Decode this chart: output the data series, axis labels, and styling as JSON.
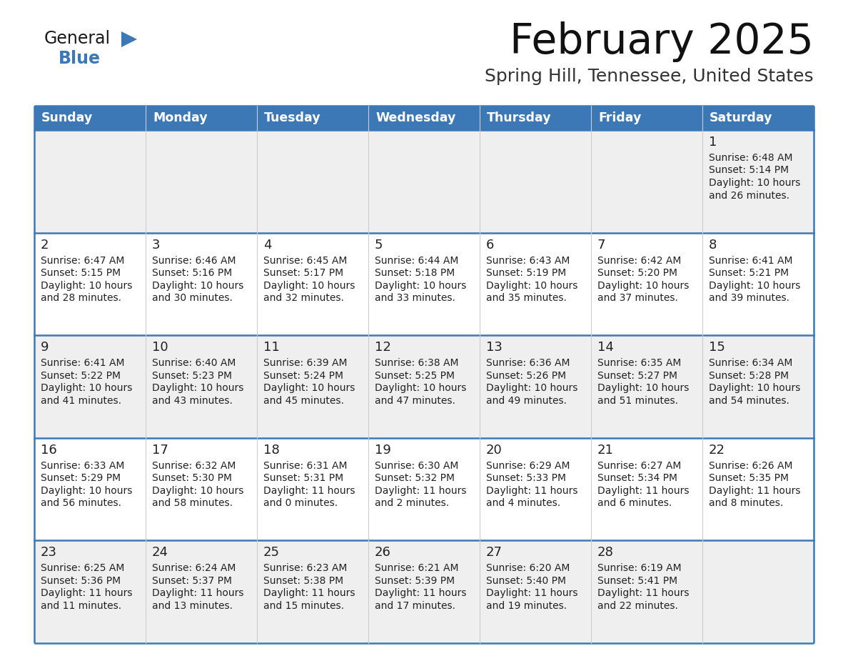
{
  "title": "February 2025",
  "subtitle": "Spring Hill, Tennessee, United States",
  "header_color": "#3c78b5",
  "header_text_color": "#ffffff",
  "cell_bg_odd": "#efefef",
  "cell_bg_even": "#ffffff",
  "border_color": "#3c78b5",
  "text_color": "#222222",
  "logo_black": "#1a1a1a",
  "logo_blue": "#3c78b5",
  "days_of_week": [
    "Sunday",
    "Monday",
    "Tuesday",
    "Wednesday",
    "Thursday",
    "Friday",
    "Saturday"
  ],
  "weeks": [
    [
      {
        "day": null,
        "sunrise": null,
        "sunset": null,
        "daylight": null
      },
      {
        "day": null,
        "sunrise": null,
        "sunset": null,
        "daylight": null
      },
      {
        "day": null,
        "sunrise": null,
        "sunset": null,
        "daylight": null
      },
      {
        "day": null,
        "sunrise": null,
        "sunset": null,
        "daylight": null
      },
      {
        "day": null,
        "sunrise": null,
        "sunset": null,
        "daylight": null
      },
      {
        "day": null,
        "sunrise": null,
        "sunset": null,
        "daylight": null
      },
      {
        "day": 1,
        "sunrise": "6:48 AM",
        "sunset": "5:14 PM",
        "daylight": "10 hours and 26 minutes."
      }
    ],
    [
      {
        "day": 2,
        "sunrise": "6:47 AM",
        "sunset": "5:15 PM",
        "daylight": "10 hours and 28 minutes."
      },
      {
        "day": 3,
        "sunrise": "6:46 AM",
        "sunset": "5:16 PM",
        "daylight": "10 hours and 30 minutes."
      },
      {
        "day": 4,
        "sunrise": "6:45 AM",
        "sunset": "5:17 PM",
        "daylight": "10 hours and 32 minutes."
      },
      {
        "day": 5,
        "sunrise": "6:44 AM",
        "sunset": "5:18 PM",
        "daylight": "10 hours and 33 minutes."
      },
      {
        "day": 6,
        "sunrise": "6:43 AM",
        "sunset": "5:19 PM",
        "daylight": "10 hours and 35 minutes."
      },
      {
        "day": 7,
        "sunrise": "6:42 AM",
        "sunset": "5:20 PM",
        "daylight": "10 hours and 37 minutes."
      },
      {
        "day": 8,
        "sunrise": "6:41 AM",
        "sunset": "5:21 PM",
        "daylight": "10 hours and 39 minutes."
      }
    ],
    [
      {
        "day": 9,
        "sunrise": "6:41 AM",
        "sunset": "5:22 PM",
        "daylight": "10 hours and 41 minutes."
      },
      {
        "day": 10,
        "sunrise": "6:40 AM",
        "sunset": "5:23 PM",
        "daylight": "10 hours and 43 minutes."
      },
      {
        "day": 11,
        "sunrise": "6:39 AM",
        "sunset": "5:24 PM",
        "daylight": "10 hours and 45 minutes."
      },
      {
        "day": 12,
        "sunrise": "6:38 AM",
        "sunset": "5:25 PM",
        "daylight": "10 hours and 47 minutes."
      },
      {
        "day": 13,
        "sunrise": "6:36 AM",
        "sunset": "5:26 PM",
        "daylight": "10 hours and 49 minutes."
      },
      {
        "day": 14,
        "sunrise": "6:35 AM",
        "sunset": "5:27 PM",
        "daylight": "10 hours and 51 minutes."
      },
      {
        "day": 15,
        "sunrise": "6:34 AM",
        "sunset": "5:28 PM",
        "daylight": "10 hours and 54 minutes."
      }
    ],
    [
      {
        "day": 16,
        "sunrise": "6:33 AM",
        "sunset": "5:29 PM",
        "daylight": "10 hours and 56 minutes."
      },
      {
        "day": 17,
        "sunrise": "6:32 AM",
        "sunset": "5:30 PM",
        "daylight": "10 hours and 58 minutes."
      },
      {
        "day": 18,
        "sunrise": "6:31 AM",
        "sunset": "5:31 PM",
        "daylight": "11 hours and 0 minutes."
      },
      {
        "day": 19,
        "sunrise": "6:30 AM",
        "sunset": "5:32 PM",
        "daylight": "11 hours and 2 minutes."
      },
      {
        "day": 20,
        "sunrise": "6:29 AM",
        "sunset": "5:33 PM",
        "daylight": "11 hours and 4 minutes."
      },
      {
        "day": 21,
        "sunrise": "6:27 AM",
        "sunset": "5:34 PM",
        "daylight": "11 hours and 6 minutes."
      },
      {
        "day": 22,
        "sunrise": "6:26 AM",
        "sunset": "5:35 PM",
        "daylight": "11 hours and 8 minutes."
      }
    ],
    [
      {
        "day": 23,
        "sunrise": "6:25 AM",
        "sunset": "5:36 PM",
        "daylight": "11 hours and 11 minutes."
      },
      {
        "day": 24,
        "sunrise": "6:24 AM",
        "sunset": "5:37 PM",
        "daylight": "11 hours and 13 minutes."
      },
      {
        "day": 25,
        "sunrise": "6:23 AM",
        "sunset": "5:38 PM",
        "daylight": "11 hours and 15 minutes."
      },
      {
        "day": 26,
        "sunrise": "6:21 AM",
        "sunset": "5:39 PM",
        "daylight": "11 hours and 17 minutes."
      },
      {
        "day": 27,
        "sunrise": "6:20 AM",
        "sunset": "5:40 PM",
        "daylight": "11 hours and 19 minutes."
      },
      {
        "day": 28,
        "sunrise": "6:19 AM",
        "sunset": "5:41 PM",
        "daylight": "11 hours and 22 minutes."
      },
      {
        "day": null,
        "sunrise": null,
        "sunset": null,
        "daylight": null
      }
    ]
  ]
}
